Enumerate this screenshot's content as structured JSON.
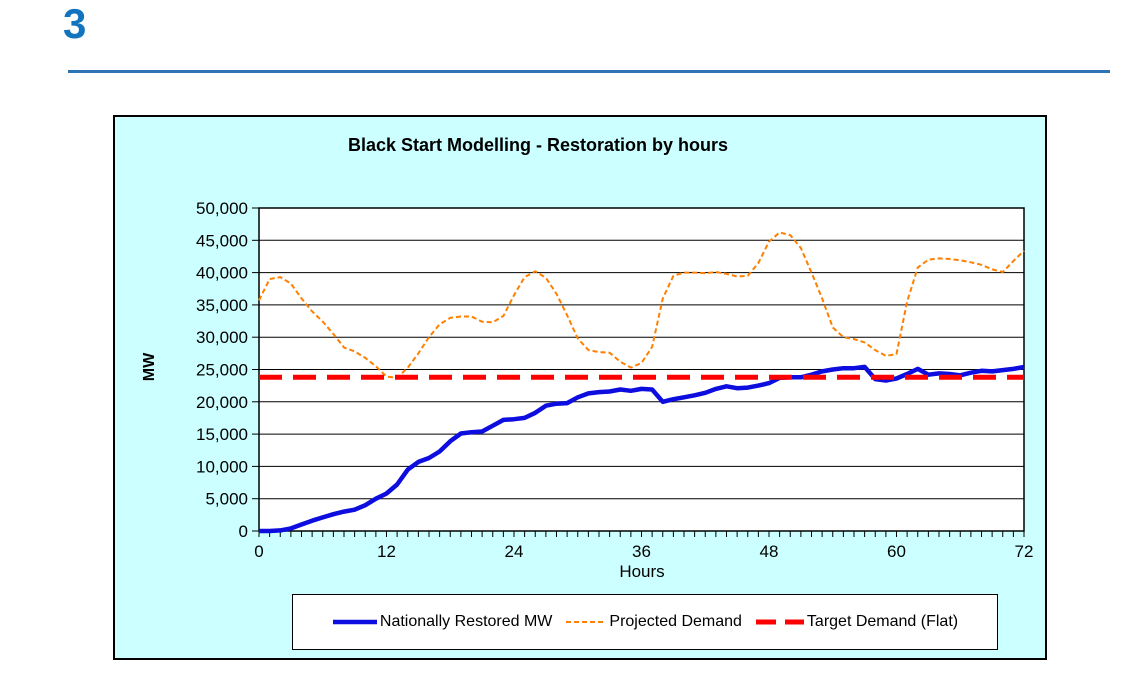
{
  "page": {
    "slide_number": "3",
    "slide_number_color": "#1273BE",
    "rule_color": "#2E74B5"
  },
  "chart": {
    "background_color": "#CCFFFF",
    "plot_background_color": "#FFFFFF",
    "grid_color": "#000000",
    "legend_position": "bottom"
  },
  "chart_data": {
    "type": "line",
    "title": "Black Start Modelling - Restoration by hours",
    "xlabel": "Hours",
    "ylabel": "MW",
    "xlim": [
      0,
      72
    ],
    "ylim": [
      0,
      50000
    ],
    "grid": "horizontal",
    "x_ticks": [
      0,
      12,
      24,
      36,
      48,
      60,
      72
    ],
    "x_minor_tick_step": 1,
    "y_ticks": {
      "values": [
        0,
        5000,
        10000,
        15000,
        20000,
        25000,
        30000,
        35000,
        40000,
        45000,
        50000
      ],
      "labels": [
        "0",
        "5,000",
        "10,000",
        "15,000",
        "20,000",
        "25,000",
        "30,000",
        "35,000",
        "40,000",
        "45,000",
        "50,000"
      ]
    },
    "x_start": 0,
    "x_step": 1,
    "series": [
      {
        "name": "Nationally Restored MW",
        "color": "#0D0DE0",
        "style": "solid",
        "width": 4.5,
        "values": [
          0,
          0,
          100,
          400,
          1000,
          1600,
          2100,
          2600,
          3000,
          3300,
          4000,
          5000,
          5800,
          7200,
          9500,
          10700,
          11300,
          12300,
          13900,
          15100,
          15300,
          15400,
          16300,
          17200,
          17300,
          17500,
          18300,
          19400,
          19700,
          19800,
          20700,
          21300,
          21500,
          21600,
          21900,
          21700,
          22000,
          21900,
          20000,
          20400,
          20700,
          21000,
          21400,
          22000,
          22400,
          22100,
          22200,
          22500,
          22900,
          23700,
          23800,
          23800,
          24200,
          24700,
          25000,
          25200,
          25200,
          25400,
          23500,
          23300,
          23600,
          24300,
          25100,
          24200,
          24400,
          24300,
          24100,
          24500,
          24800,
          24700,
          24900,
          25100,
          25400
        ]
      },
      {
        "name": "Projected Demand",
        "color": "#FF8000",
        "style": "dashed",
        "dash": "5 3",
        "width": 2,
        "values": [
          35700,
          39000,
          39300,
          38300,
          36000,
          34000,
          32400,
          30500,
          28400,
          27800,
          26800,
          25500,
          23900,
          23700,
          25300,
          27500,
          30000,
          32000,
          33000,
          33200,
          33200,
          32400,
          32300,
          33300,
          36500,
          39300,
          40200,
          39200,
          36700,
          33400,
          29800,
          28000,
          27700,
          27600,
          26200,
          25300,
          26000,
          28500,
          36000,
          39500,
          40000,
          40000,
          39900,
          40100,
          39800,
          39400,
          39500,
          41500,
          44800,
          46200,
          45800,
          43800,
          40000,
          36000,
          31500,
          30000,
          29700,
          29200,
          28000,
          27100,
          27400,
          35500,
          40800,
          42000,
          42200,
          42100,
          41900,
          41600,
          41200,
          40500,
          40100,
          41800,
          43400
        ]
      },
      {
        "name": "Target Demand (Flat)",
        "color": "#FF0000",
        "style": "long-dash",
        "dash": "23 11",
        "width": 5,
        "constant": 23800
      }
    ]
  }
}
